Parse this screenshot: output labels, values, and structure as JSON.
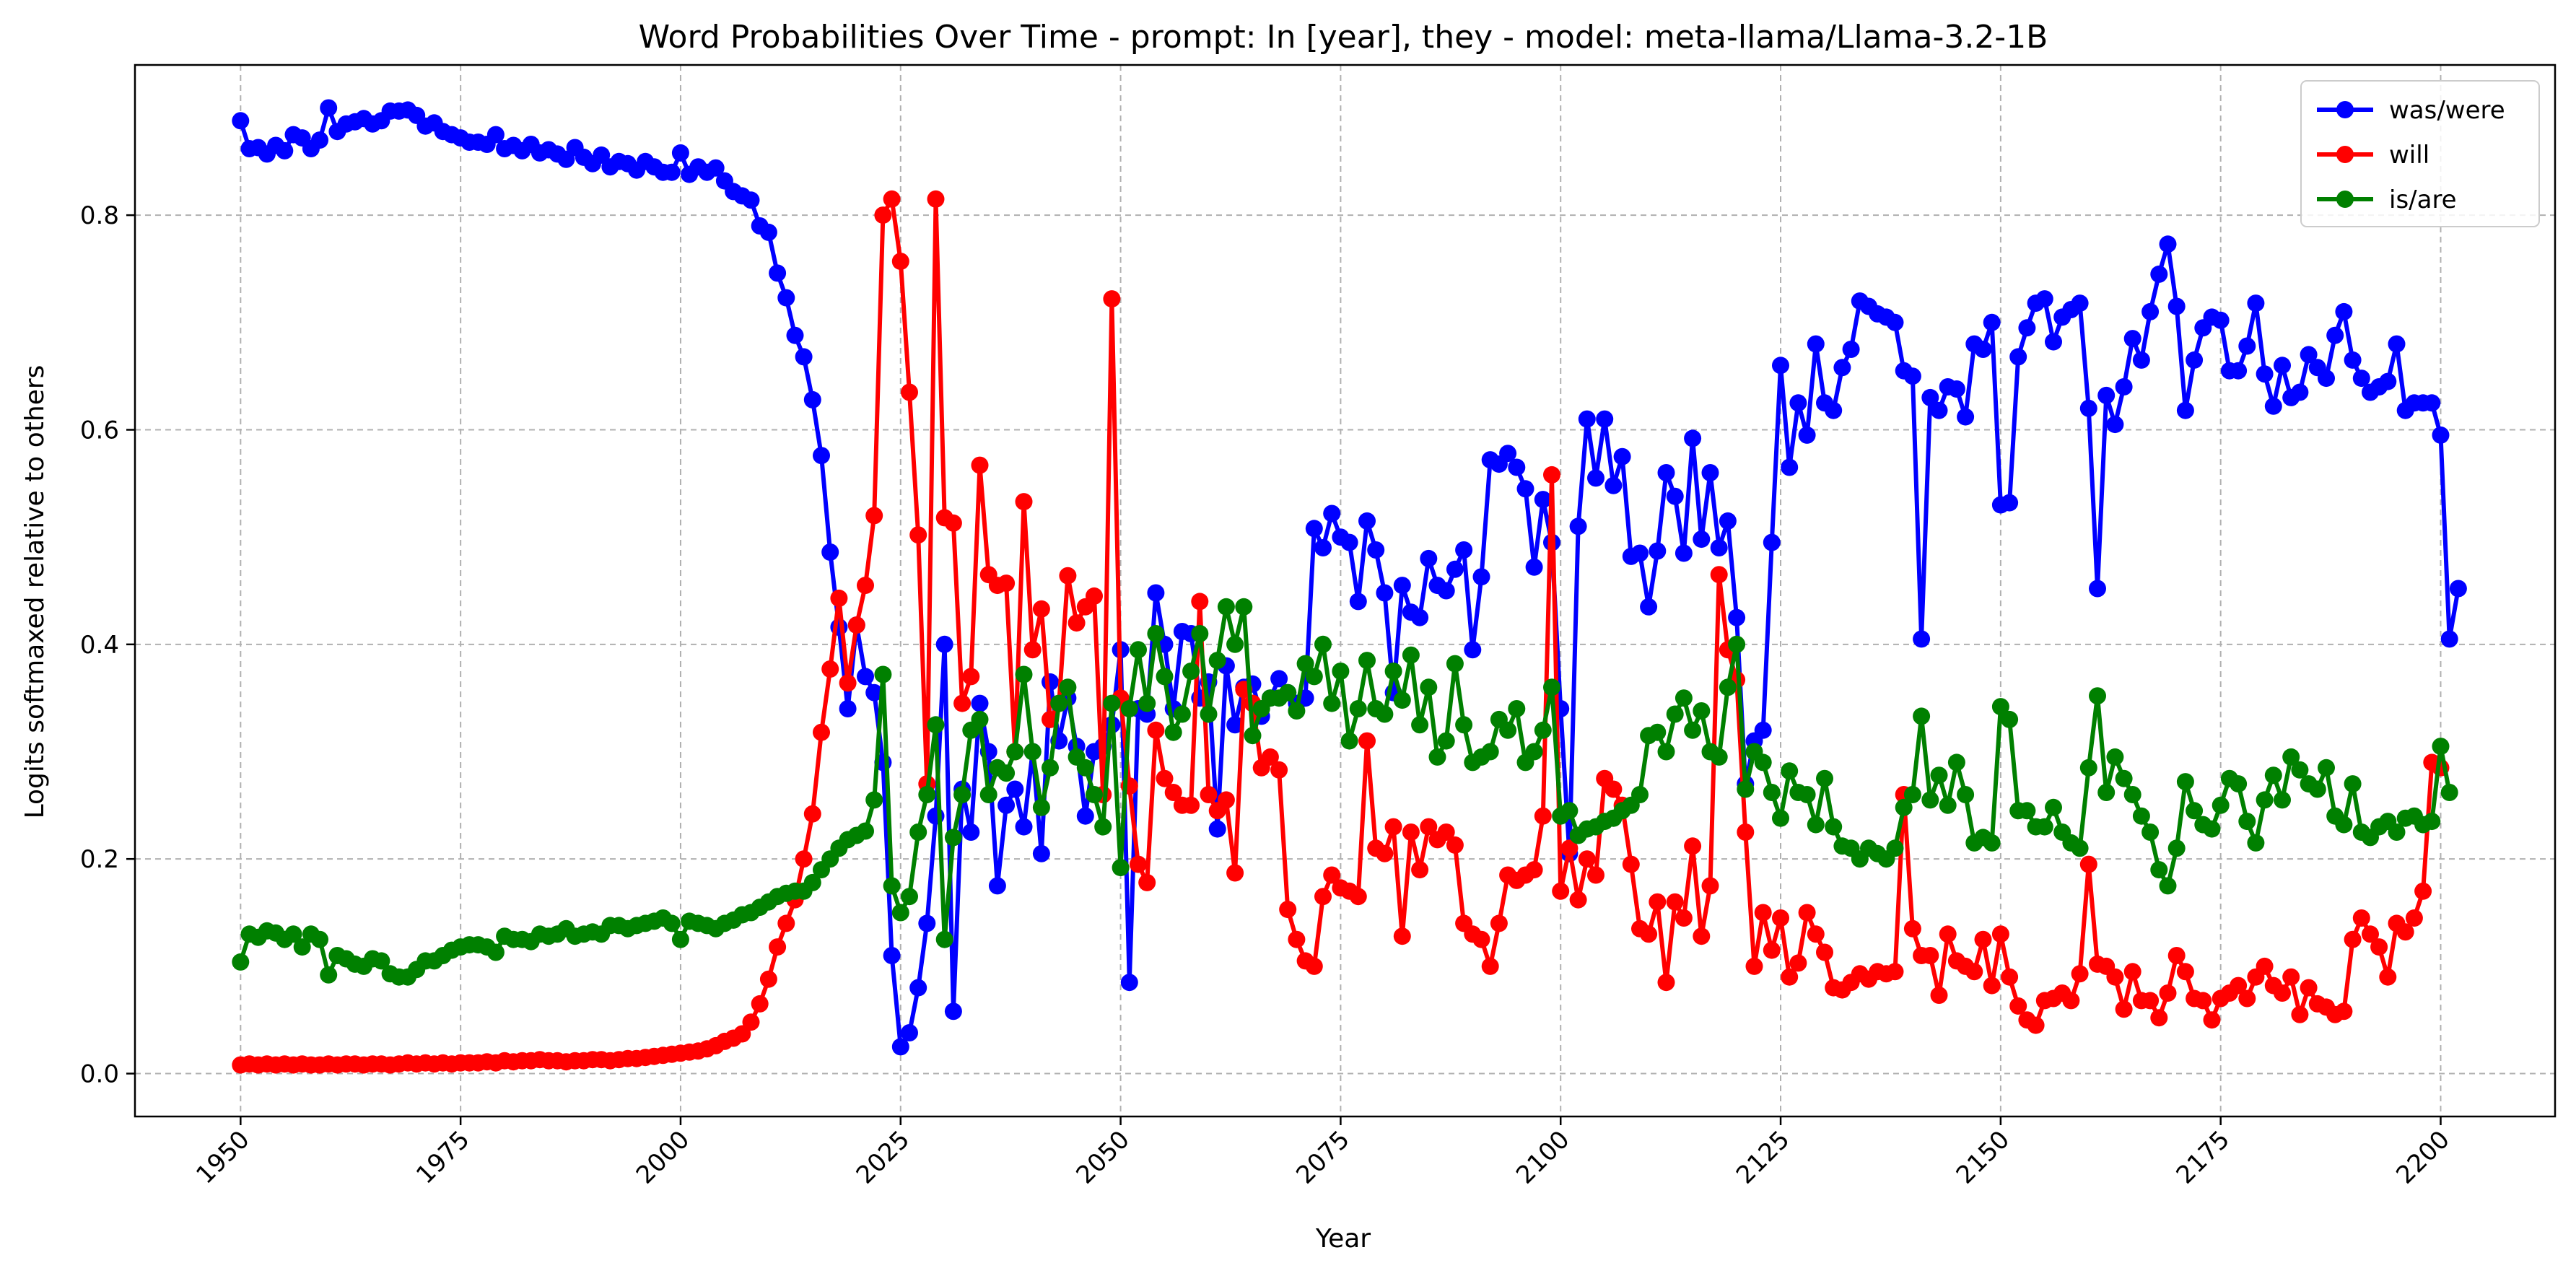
{
  "chart_data": {
    "type": "line",
    "title": "Word Probabilities Over Time - prompt: In [year], they - model: meta-llama/Llama-3.2-1B",
    "xlabel": "Year",
    "ylabel": "Logits softmaxed relative to others",
    "xlim": [
      1938,
      2213
    ],
    "ylim": [
      -0.04,
      0.94
    ],
    "x_ticks": [
      1950,
      1975,
      2000,
      2025,
      2050,
      2075,
      2100,
      2125,
      2150,
      2175,
      2200
    ],
    "y_ticks": [
      0.0,
      0.2,
      0.4,
      0.6,
      0.8
    ],
    "y_tick_labels": [
      "0.0",
      "0.2",
      "0.4",
      "0.6",
      "0.8"
    ],
    "grid": true,
    "legend_position": "top-right",
    "x_start": 1950,
    "x_step": 1,
    "series": [
      {
        "name": "was/were",
        "color": "#0000ff",
        "values": [
          0.888,
          0.862,
          0.863,
          0.857,
          0.865,
          0.86,
          0.875,
          0.872,
          0.862,
          0.87,
          0.9,
          0.878,
          0.885,
          0.887,
          0.89,
          0.885,
          0.888,
          0.897,
          0.897,
          0.898,
          0.893,
          0.883,
          0.886,
          0.878,
          0.875,
          0.872,
          0.868,
          0.868,
          0.866,
          0.875,
          0.862,
          0.865,
          0.86,
          0.866,
          0.858,
          0.861,
          0.857,
          0.852,
          0.863,
          0.854,
          0.848,
          0.856,
          0.845,
          0.85,
          0.848,
          0.842,
          0.85,
          0.845,
          0.84,
          0.84,
          0.858,
          0.838,
          0.845,
          0.84,
          0.844,
          0.832,
          0.822,
          0.818,
          0.814,
          0.79,
          0.784,
          0.746,
          0.723,
          0.688,
          0.668,
          0.628,
          0.576,
          0.486,
          0.416,
          0.34,
          0.418,
          0.37,
          0.355,
          0.29,
          0.11,
          0.025,
          0.038,
          0.08,
          0.14,
          0.24,
          0.4,
          0.058,
          0.265,
          0.225,
          0.345,
          0.3,
          0.175,
          0.25,
          0.265,
          0.23,
          0.3,
          0.205,
          0.365,
          0.31,
          0.35,
          0.305,
          0.24,
          0.3,
          0.305,
          0.325,
          0.395,
          0.085,
          0.34,
          0.335,
          0.448,
          0.4,
          0.34,
          0.412,
          0.41,
          0.35,
          0.365,
          0.228,
          0.38,
          0.325,
          0.36,
          0.363,
          0.333,
          0.35,
          0.368,
          0.355,
          0.345,
          0.35,
          0.508,
          0.49,
          0.522,
          0.5,
          0.495,
          0.44,
          0.515,
          0.488,
          0.448,
          0.355,
          0.455,
          0.43,
          0.425,
          0.48,
          0.455,
          0.45,
          0.47,
          0.488,
          0.395,
          0.463,
          0.572,
          0.568,
          0.578,
          0.565,
          0.545,
          0.472,
          0.535,
          0.495,
          0.34,
          0.205,
          0.51,
          0.61,
          0.555,
          0.61,
          0.548,
          0.575,
          0.482,
          0.485,
          0.435,
          0.487,
          0.56,
          0.538,
          0.485,
          0.592,
          0.498,
          0.56,
          0.49,
          0.515,
          0.425,
          0.27,
          0.31,
          0.32,
          0.495,
          0.66,
          0.565,
          0.625,
          0.595,
          0.68,
          0.625,
          0.618,
          0.658,
          0.675,
          0.72,
          0.715,
          0.708,
          0.705,
          0.7,
          0.655,
          0.65,
          0.405,
          0.63,
          0.618,
          0.64,
          0.638,
          0.612,
          0.68,
          0.675,
          0.7,
          0.53,
          0.532,
          0.668,
          0.695,
          0.718,
          0.722,
          0.682,
          0.705,
          0.712,
          0.718,
          0.62,
          0.452,
          0.632,
          0.605,
          0.64,
          0.685,
          0.665,
          0.71,
          0.745,
          0.773,
          0.715,
          0.618,
          0.665,
          0.695,
          0.705,
          0.702,
          0.655,
          0.655,
          0.678,
          0.718,
          0.652,
          0.622,
          0.66,
          0.63,
          0.635,
          0.67,
          0.658,
          0.648,
          0.688,
          0.71,
          0.665,
          0.648,
          0.635,
          0.64,
          0.645,
          0.68,
          0.618,
          0.625,
          0.625,
          0.625,
          0.595,
          0.405,
          0.452
        ]
      },
      {
        "name": "will",
        "color": "#ff0000",
        "values": [
          0.008,
          0.009,
          0.008,
          0.009,
          0.008,
          0.009,
          0.008,
          0.009,
          0.008,
          0.008,
          0.009,
          0.008,
          0.009,
          0.009,
          0.008,
          0.009,
          0.009,
          0.008,
          0.009,
          0.01,
          0.009,
          0.01,
          0.009,
          0.01,
          0.009,
          0.01,
          0.01,
          0.01,
          0.011,
          0.01,
          0.012,
          0.011,
          0.012,
          0.012,
          0.013,
          0.012,
          0.012,
          0.011,
          0.012,
          0.012,
          0.013,
          0.013,
          0.012,
          0.013,
          0.014,
          0.014,
          0.015,
          0.016,
          0.017,
          0.018,
          0.019,
          0.02,
          0.021,
          0.023,
          0.026,
          0.03,
          0.033,
          0.037,
          0.048,
          0.065,
          0.088,
          0.118,
          0.14,
          0.162,
          0.2,
          0.242,
          0.318,
          0.377,
          0.443,
          0.364,
          0.418,
          0.455,
          0.52,
          0.8,
          0.815,
          0.757,
          0.635,
          0.502,
          0.27,
          0.815,
          0.518,
          0.513,
          0.345,
          0.37,
          0.567,
          0.465,
          0.455,
          0.457,
          0.3,
          0.533,
          0.395,
          0.433,
          0.33,
          0.345,
          0.464,
          0.42,
          0.435,
          0.445,
          0.26,
          0.722,
          0.35,
          0.268,
          0.195,
          0.178,
          0.32,
          0.275,
          0.262,
          0.25,
          0.25,
          0.44,
          0.26,
          0.245,
          0.255,
          0.187,
          0.358,
          0.345,
          0.285,
          0.295,
          0.283,
          0.153,
          0.125,
          0.105,
          0.1,
          0.165,
          0.185,
          0.173,
          0.17,
          0.165,
          0.31,
          0.21,
          0.205,
          0.23,
          0.128,
          0.225,
          0.19,
          0.23,
          0.218,
          0.225,
          0.213,
          0.14,
          0.13,
          0.125,
          0.1,
          0.14,
          0.185,
          0.18,
          0.185,
          0.19,
          0.24,
          0.558,
          0.17,
          0.21,
          0.162,
          0.2,
          0.185,
          0.275,
          0.265,
          0.25,
          0.195,
          0.135,
          0.13,
          0.16,
          0.085,
          0.16,
          0.145,
          0.212,
          0.128,
          0.175,
          0.465,
          0.395,
          0.367,
          0.225,
          0.1,
          0.15,
          0.115,
          0.145,
          0.09,
          0.103,
          0.15,
          0.13,
          0.113,
          0.08,
          0.078,
          0.085,
          0.093,
          0.088,
          0.095,
          0.093,
          0.095,
          0.26,
          0.135,
          0.11,
          0.11,
          0.073,
          0.13,
          0.105,
          0.1,
          0.095,
          0.125,
          0.082,
          0.13,
          0.09,
          0.063,
          0.05,
          0.045,
          0.068,
          0.07,
          0.075,
          0.068,
          0.093,
          0.195,
          0.102,
          0.1,
          0.09,
          0.06,
          0.095,
          0.068,
          0.068,
          0.052,
          0.075,
          0.11,
          0.095,
          0.07,
          0.068,
          0.05,
          0.07,
          0.075,
          0.082,
          0.07,
          0.09,
          0.1,
          0.082,
          0.075,
          0.09,
          0.055,
          0.08,
          0.065,
          0.062,
          0.055,
          0.058,
          0.125,
          0.145,
          0.13,
          0.118,
          0.09,
          0.14,
          0.132,
          0.145,
          0.17,
          0.29,
          0.285
        ]
      },
      {
        "name": "is/are",
        "color": "#008000",
        "values": [
          0.104,
          0.13,
          0.127,
          0.133,
          0.131,
          0.125,
          0.13,
          0.118,
          0.13,
          0.125,
          0.092,
          0.11,
          0.107,
          0.102,
          0.1,
          0.107,
          0.105,
          0.093,
          0.09,
          0.09,
          0.097,
          0.105,
          0.105,
          0.11,
          0.115,
          0.118,
          0.12,
          0.12,
          0.118,
          0.113,
          0.128,
          0.125,
          0.125,
          0.123,
          0.13,
          0.128,
          0.13,
          0.135,
          0.128,
          0.13,
          0.132,
          0.13,
          0.138,
          0.138,
          0.135,
          0.138,
          0.14,
          0.142,
          0.145,
          0.14,
          0.125,
          0.142,
          0.14,
          0.138,
          0.135,
          0.14,
          0.143,
          0.148,
          0.15,
          0.155,
          0.16,
          0.165,
          0.168,
          0.17,
          0.17,
          0.178,
          0.19,
          0.2,
          0.21,
          0.218,
          0.222,
          0.226,
          0.255,
          0.372,
          0.175,
          0.15,
          0.165,
          0.225,
          0.26,
          0.325,
          0.125,
          0.22,
          0.26,
          0.32,
          0.33,
          0.26,
          0.285,
          0.28,
          0.3,
          0.372,
          0.3,
          0.248,
          0.285,
          0.345,
          0.36,
          0.295,
          0.285,
          0.26,
          0.23,
          0.345,
          0.192,
          0.34,
          0.395,
          0.345,
          0.41,
          0.37,
          0.318,
          0.335,
          0.375,
          0.41,
          0.335,
          0.385,
          0.435,
          0.4,
          0.435,
          0.315,
          0.34,
          0.35,
          0.35,
          0.355,
          0.338,
          0.382,
          0.37,
          0.4,
          0.345,
          0.375,
          0.31,
          0.34,
          0.385,
          0.34,
          0.335,
          0.375,
          0.348,
          0.39,
          0.325,
          0.36,
          0.295,
          0.31,
          0.382,
          0.325,
          0.29,
          0.295,
          0.3,
          0.33,
          0.32,
          0.34,
          0.29,
          0.3,
          0.32,
          0.36,
          0.24,
          0.245,
          0.222,
          0.228,
          0.23,
          0.235,
          0.238,
          0.245,
          0.25,
          0.26,
          0.315,
          0.318,
          0.3,
          0.335,
          0.35,
          0.32,
          0.338,
          0.3,
          0.295,
          0.36,
          0.4,
          0.265,
          0.3,
          0.29,
          0.262,
          0.238,
          0.282,
          0.262,
          0.26,
          0.232,
          0.275,
          0.23,
          0.212,
          0.21,
          0.2,
          0.21,
          0.205,
          0.2,
          0.21,
          0.248,
          0.26,
          0.333,
          0.255,
          0.278,
          0.25,
          0.29,
          0.26,
          0.215,
          0.22,
          0.215,
          0.342,
          0.33,
          0.245,
          0.245,
          0.23,
          0.23,
          0.248,
          0.225,
          0.215,
          0.21,
          0.285,
          0.352,
          0.262,
          0.295,
          0.275,
          0.26,
          0.24,
          0.225,
          0.19,
          0.175,
          0.21,
          0.272,
          0.245,
          0.232,
          0.228,
          0.25,
          0.275,
          0.27,
          0.235,
          0.215,
          0.255,
          0.278,
          0.255,
          0.295,
          0.283,
          0.27,
          0.265,
          0.285,
          0.24,
          0.232,
          0.27,
          0.225,
          0.22,
          0.23,
          0.235,
          0.225,
          0.238,
          0.24,
          0.232,
          0.235,
          0.305,
          0.262
        ]
      }
    ]
  }
}
